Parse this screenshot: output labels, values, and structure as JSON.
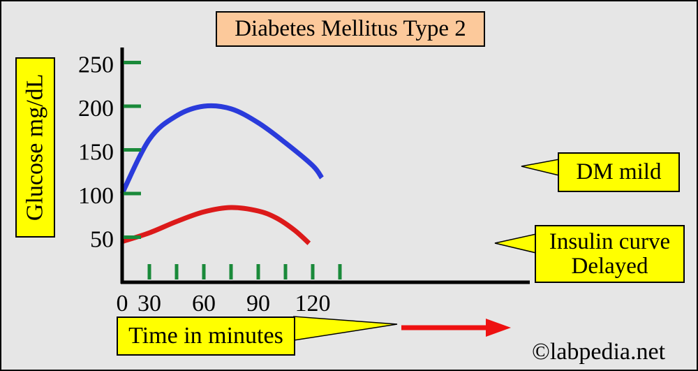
{
  "chart_data": {
    "type": "line",
    "title": "Diabetes Mellitus Type 2",
    "ylabel": "Glucose mg/dL",
    "xlabel": "Time in minutes",
    "ylim": [
      0,
      250
    ],
    "y_ticks": [
      50,
      100,
      150,
      200,
      250
    ],
    "y_tick_labels": [
      "50",
      "100",
      "150",
      "200",
      "250"
    ],
    "x_ticks": [
      0,
      15,
      30,
      45,
      60,
      75,
      90,
      105,
      120
    ],
    "x_tick_labels": [
      {
        "value": 0,
        "label": "0"
      },
      {
        "value": 15,
        "label": "30"
      },
      {
        "value": 45,
        "label": "60"
      },
      {
        "value": 75,
        "label": "90"
      },
      {
        "value": 105,
        "label": "120"
      }
    ],
    "series": [
      {
        "name": "DM mild",
        "color": "#2a3bdb",
        "x": [
          0,
          15,
          30,
          45,
          60,
          75,
          90,
          105,
          110
        ],
        "y": [
          100,
          162,
          189,
          200,
          197,
          181,
          158,
          132,
          118
        ]
      },
      {
        "name": "Insulin curve Delayed",
        "color": "#dc1a1a",
        "x": [
          0,
          15,
          30,
          45,
          60,
          75,
          85,
          95,
          103
        ],
        "y": [
          45,
          55,
          68,
          79,
          84,
          80,
          72,
          58,
          43
        ]
      }
    ],
    "annotations": {
      "dm": "DM mild",
      "insulin_line1": "Insulin curve",
      "insulin_line2": "Delayed"
    },
    "credit": "©labpedia.net",
    "colors": {
      "axis": "#000000",
      "tick": "#1a8a3a",
      "label_box": "#ffff00",
      "title_box": "#fcc99b",
      "arrow": "#ee1111",
      "background": "#e6e6e6"
    }
  }
}
